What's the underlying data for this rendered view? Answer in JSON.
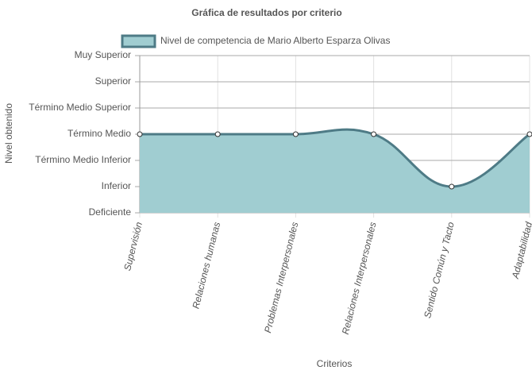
{
  "chart_data": {
    "type": "line",
    "title": "Gráfica de resultados por criterio",
    "x_label": "Criterios",
    "y_label": "Nivel obtenido",
    "categories": [
      "Supervisión",
      "Relaciones humanas",
      "Problemas Interpersonales",
      "Relaciones Interpersonales",
      "Sentido Común y Tacto",
      "Adaptabilidad"
    ],
    "series": [
      {
        "name": "Nivel de competencia de Mario Alberto Esparza Olivas",
        "color": "#4e7b86",
        "fill": "#a0cdd1",
        "values": [
          3,
          3,
          3,
          3,
          1,
          3
        ]
      }
    ],
    "ylim": [
      0,
      6
    ],
    "yticks": [
      {
        "value": 0,
        "label": "Deficiente"
      },
      {
        "value": 1,
        "label": "Inferior"
      },
      {
        "value": 2,
        "label": "Término Medio Inferior"
      },
      {
        "value": 3,
        "label": "Término Medio"
      },
      {
        "value": 4,
        "label": "Término Medio Superior"
      },
      {
        "value": 5,
        "label": "Superior"
      },
      {
        "value": 6,
        "label": "Muy Superior"
      }
    ],
    "grid": true
  }
}
